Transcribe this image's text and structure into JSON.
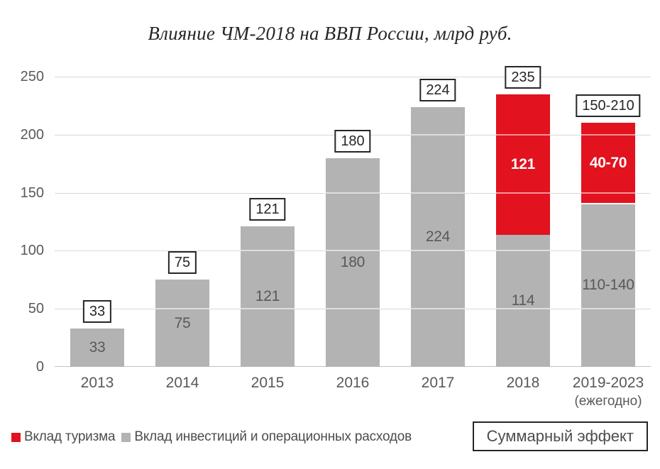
{
  "colors": {
    "tourism_red": "#e2121f",
    "investments_gray": "#b3b3b3",
    "gridline": "#d9d9d9",
    "axis_text": "#595959",
    "box_border": "#262626"
  },
  "legend": {
    "tourism_label": "Вклад туризма",
    "investments_label": "Вклад инвестиций и операционных расходов",
    "total_label": "Суммарный эффект"
  },
  "chart_data": {
    "type": "bar",
    "stacked": true,
    "title": "Влияние ЧМ-2018 на ВВП России, млрд руб.",
    "xlabel": "",
    "ylabel": "",
    "ylim": [
      0,
      250
    ],
    "yticks": [
      0,
      50,
      100,
      150,
      200,
      250
    ],
    "grid": true,
    "legend_position": "bottom",
    "categories": [
      "2013",
      "2014",
      "2015",
      "2016",
      "2017",
      "2018",
      "2019-2023"
    ],
    "category_sublabels": [
      "",
      "",
      "",
      "",
      "",
      "",
      "(ежегодно)"
    ],
    "series": [
      {
        "name": "Вклад инвестиций и операционных расходов",
        "color": "#b3b3b3",
        "values": [
          33,
          75,
          121,
          180,
          224,
          114,
          140
        ],
        "labels": [
          "33",
          "75",
          "121",
          "180",
          "224",
          "114",
          "110-140"
        ]
      },
      {
        "name": "Вклад туризма",
        "color": "#e2121f",
        "values": [
          0,
          0,
          0,
          0,
          0,
          121,
          70
        ],
        "labels": [
          "",
          "",
          "",
          "",
          "",
          "121",
          "40-70"
        ]
      }
    ],
    "totals": {
      "name": "Суммарный эффект",
      "values": [
        33,
        75,
        121,
        180,
        224,
        235,
        210
      ],
      "labels": [
        "33",
        "75",
        "121",
        "180",
        "224",
        "235",
        "150-210"
      ]
    },
    "range_separator": [
      false,
      false,
      false,
      false,
      false,
      false,
      true
    ]
  }
}
